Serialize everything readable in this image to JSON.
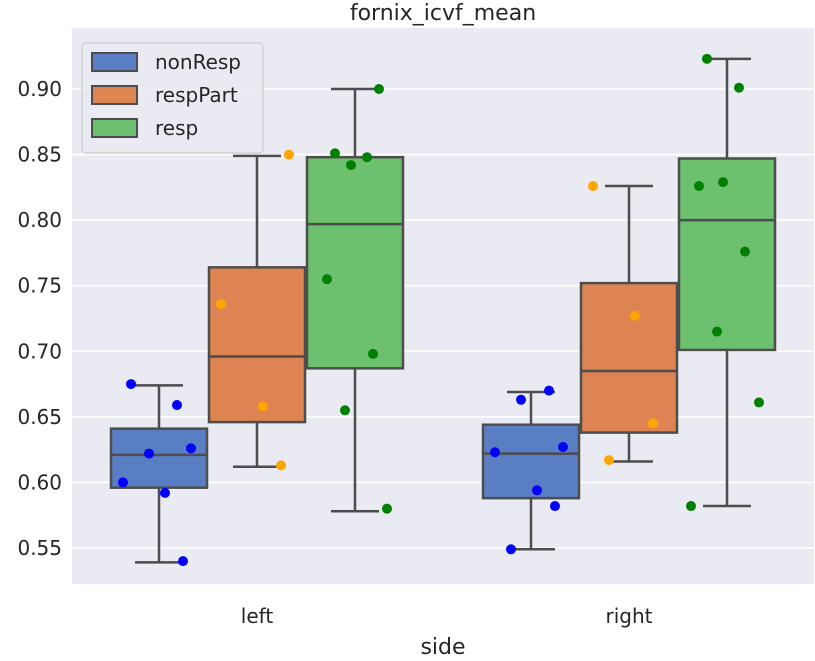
{
  "chart_data": {
    "type": "box",
    "title": "fornix_icvf_mean",
    "xlabel": "side",
    "ylabel": "",
    "categories": [
      "left",
      "right"
    ],
    "ylim": [
      0.52,
      0.94
    ],
    "yticks": [
      "0.55",
      "0.60",
      "0.65",
      "0.70",
      "0.75",
      "0.80",
      "0.85",
      "0.90"
    ],
    "grid": true,
    "legend_position": "top-left",
    "series": [
      {
        "name": "nonResp",
        "color": "#5a7ec4",
        "point_color": "#0000ff",
        "boxes": [
          {
            "category": "left",
            "whisker_low": 0.539,
            "q1": 0.596,
            "median": 0.621,
            "q3": 0.641,
            "whisker_high": 0.674
          },
          {
            "category": "right",
            "whisker_low": 0.549,
            "q1": 0.588,
            "median": 0.622,
            "q3": 0.644,
            "whisker_high": 0.669
          }
        ],
        "points": [
          {
            "category": "left",
            "values": [
              0.675,
              0.659,
              0.622,
              0.626,
              0.6,
              0.592,
              0.54
            ]
          },
          {
            "category": "right",
            "values": [
              0.67,
              0.663,
              0.627,
              0.623,
              0.594,
              0.582,
              0.549
            ]
          }
        ]
      },
      {
        "name": "respPart",
        "color": "#dd8452",
        "point_color": "#ffa500",
        "boxes": [
          {
            "category": "left",
            "whisker_low": 0.612,
            "q1": 0.646,
            "median": 0.696,
            "q3": 0.764,
            "whisker_high": 0.849
          },
          {
            "category": "right",
            "whisker_low": 0.616,
            "q1": 0.638,
            "median": 0.685,
            "q3": 0.752,
            "whisker_high": 0.826
          }
        ],
        "points": [
          {
            "category": "left",
            "values": [
              0.85,
              0.736,
              0.658,
              0.613
            ]
          },
          {
            "category": "right",
            "values": [
              0.826,
              0.727,
              0.645,
              0.617
            ]
          }
        ]
      },
      {
        "name": "resp",
        "color": "#6cc06e",
        "point_color": "#008000",
        "boxes": [
          {
            "category": "left",
            "whisker_low": 0.578,
            "q1": 0.687,
            "median": 0.797,
            "q3": 0.848,
            "whisker_high": 0.9
          },
          {
            "category": "right",
            "whisker_low": 0.582,
            "q1": 0.701,
            "median": 0.8,
            "q3": 0.847,
            "whisker_high": 0.923
          }
        ],
        "points": [
          {
            "category": "left",
            "values": [
              0.9,
              0.851,
              0.848,
              0.842,
              0.755,
              0.698,
              0.655,
              0.58
            ]
          },
          {
            "category": "right",
            "values": [
              0.923,
              0.901,
              0.829,
              0.826,
              0.776,
              0.715,
              0.661,
              0.582
            ]
          }
        ]
      }
    ]
  }
}
